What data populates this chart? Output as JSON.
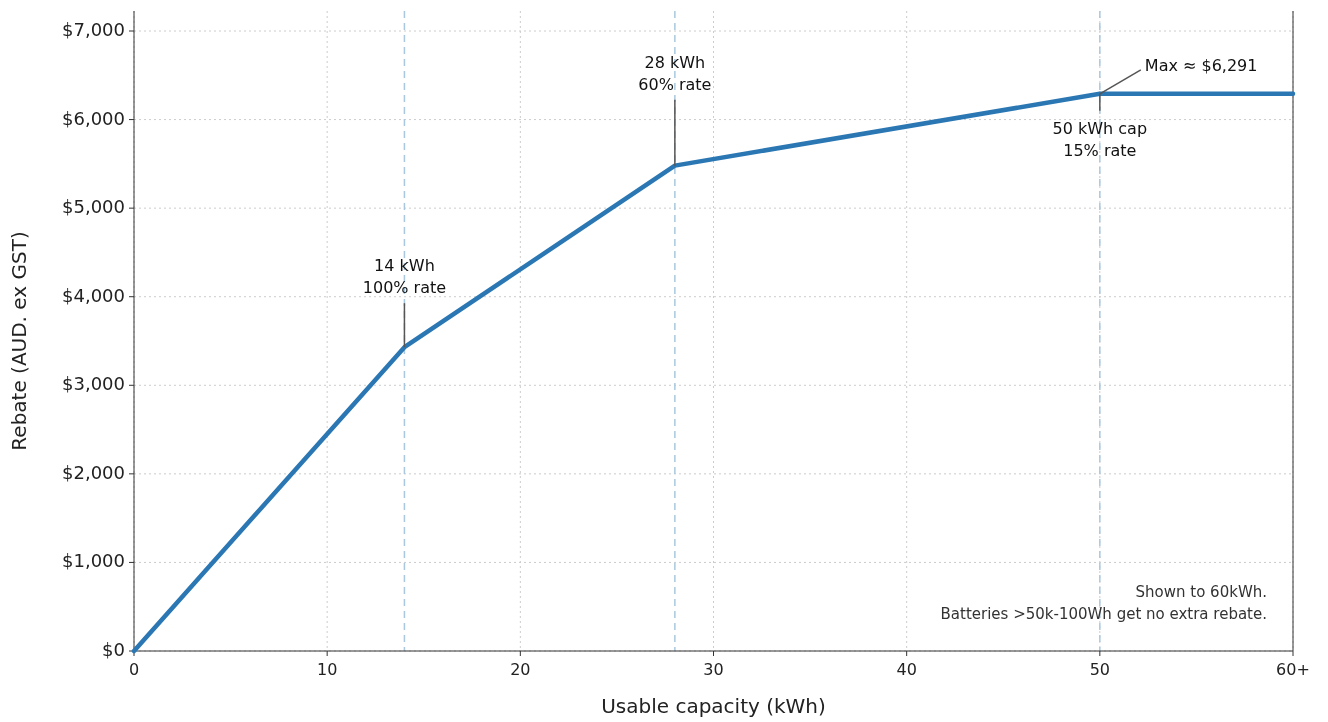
{
  "chart_data": {
    "type": "line",
    "xlabel": "Usable capacity (kWh)",
    "ylabel": "Rebate (AUD. ex GST)",
    "x": [
      0,
      14,
      28,
      50,
      60
    ],
    "series": [
      {
        "color": "#2a77b4",
        "values": [
          0,
          3430,
          5480,
          6291,
          6291
        ]
      }
    ],
    "xlim": [
      0,
      60
    ],
    "xticks": [
      0,
      10,
      20,
      30,
      40,
      50,
      {
        "value": 60,
        "label": "60+"
      }
    ],
    "ylim": [
      0,
      7000
    ],
    "yticks": [
      {
        "value": 0,
        "label": "$0"
      },
      {
        "value": 1000,
        "label": "$1,000"
      },
      {
        "value": 2000,
        "label": "$2,000"
      },
      {
        "value": 3000,
        "label": "$3,000"
      },
      {
        "value": 4000,
        "label": "$4,000"
      },
      {
        "value": 5000,
        "label": "$5,000"
      },
      {
        "value": 6000,
        "label": "$6,000"
      },
      {
        "value": 7000,
        "label": "$7,000"
      }
    ],
    "grid": true,
    "line_style": "solid",
    "marker": "none",
    "ref_lines": [
      {
        "axis": "x",
        "value": 14,
        "label": null,
        "color": "#a9c8e0",
        "line_style": "dashed"
      },
      {
        "axis": "x",
        "value": 28,
        "label": null,
        "color": "#a9c8e0",
        "line_style": "dashed"
      },
      {
        "axis": "x",
        "value": 50,
        "label": null,
        "color": "#a9c8e0",
        "line_style": "dashed"
      }
    ],
    "annotations": [
      {
        "text": "14 kWh\n100% rate",
        "x": 14,
        "y": 3430
      },
      {
        "text": "28 kWh\n60% rate",
        "x": 28,
        "y": 5480
      },
      {
        "text": "Max ≈ $6,291",
        "x": 50,
        "y": 6291
      },
      {
        "text": "50 kWh cap\n15% rate",
        "x": 50,
        "y": 6291
      },
      "Shown to 60kWh.\nBatteries >50k-100Wh get no extra rebate."
    ]
  }
}
